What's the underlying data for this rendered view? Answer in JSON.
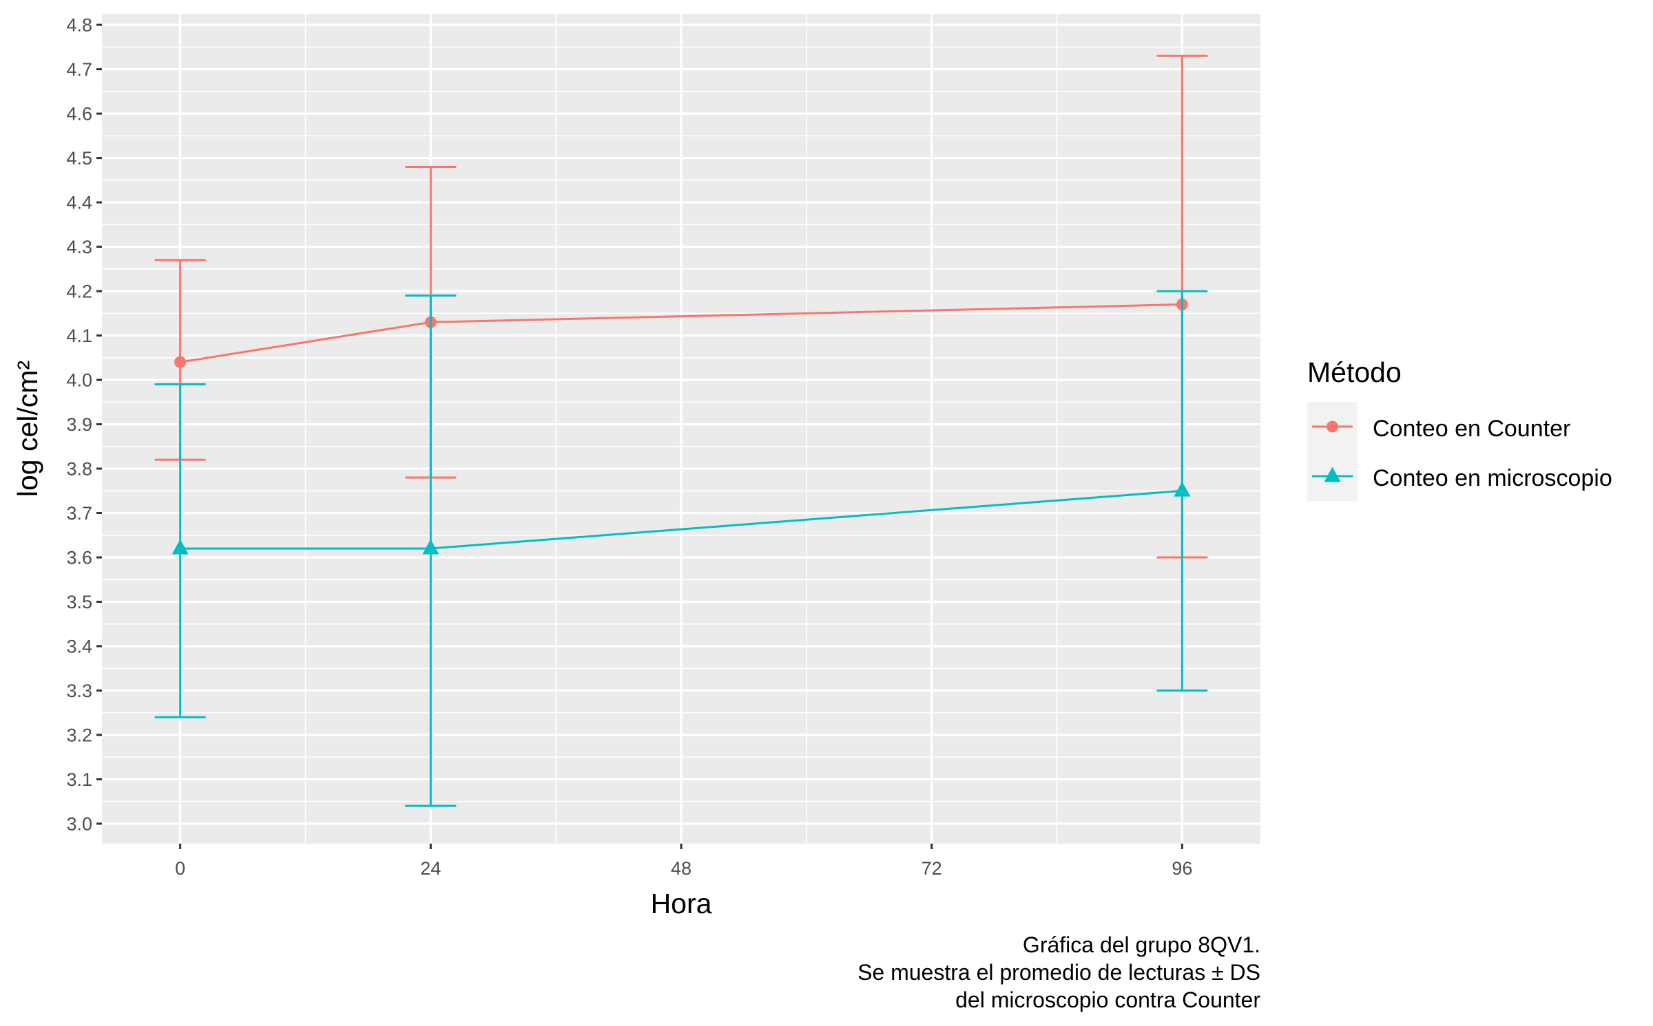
{
  "chart_data": {
    "type": "line",
    "xlabel": "Hora",
    "ylabel": "log cel/cm²",
    "x_ticks": [
      "0",
      "24",
      "48",
      "72",
      "96"
    ],
    "y_ticks": [
      "3.0",
      "3.1",
      "3.2",
      "3.3",
      "3.4",
      "3.5",
      "3.6",
      "3.7",
      "3.8",
      "3.9",
      "4.0",
      "4.1",
      "4.2",
      "4.3",
      "4.4",
      "4.5",
      "4.6",
      "4.7",
      "4.8"
    ],
    "xlim": [
      -7.5,
      103.5
    ],
    "ylim": [
      2.955,
      4.825
    ],
    "grid": true,
    "legend": {
      "title": "Método",
      "position": "right"
    },
    "x": [
      0,
      24,
      96
    ],
    "series": [
      {
        "name": "Conteo en Counter",
        "color": "#F8766D",
        "marker": "circle",
        "values": [
          4.04,
          4.13,
          4.17
        ],
        "lower": [
          3.82,
          3.78,
          3.6
        ],
        "upper": [
          4.27,
          4.48,
          4.73
        ]
      },
      {
        "name": "Conteo en microscopio",
        "color": "#00BFC4",
        "marker": "triangle",
        "values": [
          3.62,
          3.62,
          3.75
        ],
        "lower": [
          3.24,
          3.04,
          3.3
        ],
        "upper": [
          3.99,
          4.19,
          4.2
        ]
      }
    ],
    "caption": [
      "Gráfica del grupo 8QV1.",
      "Se muestra el promedio de lecturas ± DS",
      "del microscopio contra Counter"
    ]
  }
}
